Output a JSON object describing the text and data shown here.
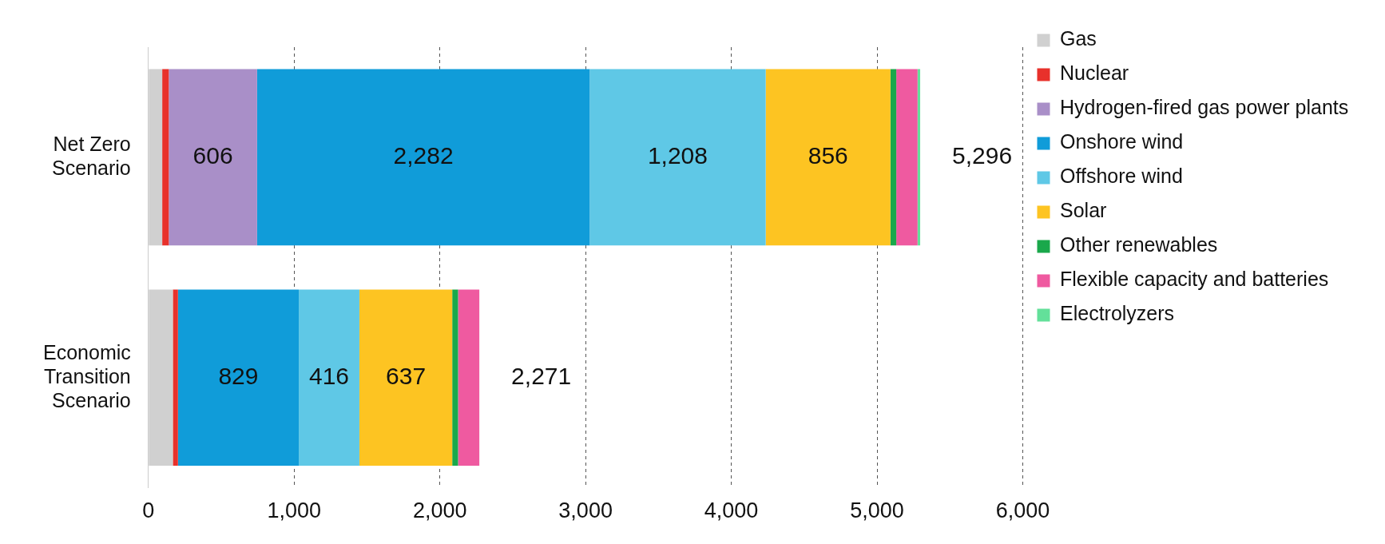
{
  "chart_data": {
    "type": "bar",
    "orientation": "horizontal",
    "stacked": true,
    "categories": [
      "Net Zero Scenario",
      "Economic Transition Scenario"
    ],
    "series": [
      {
        "name": "Gas",
        "color": "#d0d0d0",
        "values": [
          95,
          168
        ]
      },
      {
        "name": "Nuclear",
        "color": "#e8312b",
        "values": [
          45,
          35
        ]
      },
      {
        "name": "Hydrogen-fired gas power plants",
        "color": "#a98fc8",
        "values": [
          606,
          null
        ],
        "value_labels": [
          "606",
          null
        ]
      },
      {
        "name": "Onshore wind",
        "color": "#109cd9",
        "values": [
          2282,
          829
        ],
        "value_labels": [
          "2,282",
          "829"
        ]
      },
      {
        "name": "Offshore wind",
        "color": "#5fc8e6",
        "values": [
          1208,
          416
        ],
        "value_labels": [
          "1,208",
          "416"
        ]
      },
      {
        "name": "Solar",
        "color": "#fdc422",
        "values": [
          856,
          637
        ],
        "value_labels": [
          "856",
          "637"
        ]
      },
      {
        "name": "Other renewables",
        "color": "#1aa84b",
        "values": [
          40,
          40
        ]
      },
      {
        "name": "Flexible capacity and batteries",
        "color": "#ef5aa0",
        "values": [
          146,
          146
        ]
      },
      {
        "name": "Electrolyzers",
        "color": "#63e09a",
        "values": [
          18,
          null
        ]
      }
    ],
    "totals": [
      "5,296",
      "2,271"
    ],
    "xlim": [
      0,
      6000
    ],
    "xticks": [
      0,
      {
        "value": 1000,
        "label": "1,000"
      },
      {
        "value": 2000,
        "label": "2,000"
      },
      {
        "value": 3000,
        "label": "3,000"
      },
      {
        "value": 4000,
        "label": "4,000"
      },
      {
        "value": 5000,
        "label": "5,000"
      },
      {
        "value": 6000,
        "label": "6,000"
      }
    ],
    "grid": "x",
    "line_style": "dashed",
    "legend": "right"
  }
}
